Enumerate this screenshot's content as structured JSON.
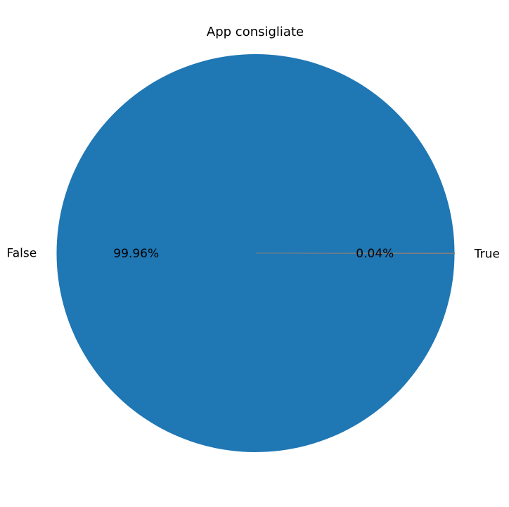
{
  "chart_data": {
    "type": "pie",
    "title": "App consigliate",
    "slices": [
      {
        "label": "False",
        "value": 99.96,
        "pct_label": "99.96%",
        "color": "#1f77b4"
      },
      {
        "label": "True",
        "value": 0.04,
        "pct_label": "0.04%",
        "color": "#7f7f7f"
      }
    ],
    "start_angle": 0,
    "direction": "counterclockwise"
  }
}
